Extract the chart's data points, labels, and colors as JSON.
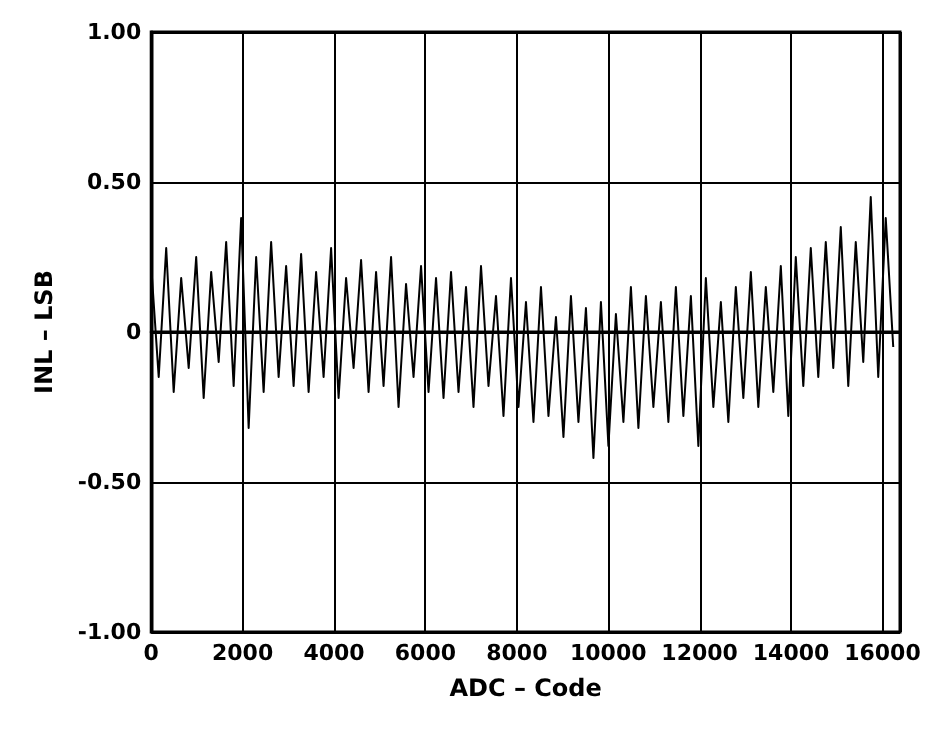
{
  "chart_data": {
    "type": "line",
    "xlabel": "ADC – Code",
    "ylabel": "INL – LSB",
    "x": [
      0,
      164,
      328,
      492,
      656,
      820,
      984,
      1148,
      1312,
      1476,
      1640,
      1804,
      1968,
      2132,
      2296,
      2460,
      2624,
      2788,
      2952,
      3116,
      3280,
      3444,
      3608,
      3772,
      3936,
      4100,
      4264,
      4428,
      4592,
      4756,
      4920,
      5084,
      5248,
      5412,
      5576,
      5740,
      5904,
      6068,
      6232,
      6396,
      6560,
      6724,
      6888,
      7052,
      7216,
      7380,
      7544,
      7708,
      7872,
      8036,
      8200,
      8364,
      8528,
      8692,
      8856,
      9020,
      9184,
      9348,
      9512,
      9676,
      9840,
      10004,
      10168,
      10332,
      10496,
      10660,
      10824,
      10988,
      11152,
      11316,
      11480,
      11644,
      11808,
      11972,
      12136,
      12300,
      12464,
      12628,
      12792,
      12956,
      13120,
      13284,
      13448,
      13612,
      13776,
      13940,
      14104,
      14268,
      14432,
      14596,
      14760,
      14924,
      15088,
      15252,
      15416,
      15580,
      15744,
      15908,
      16072,
      16236
    ],
    "series": [
      {
        "color": "#000000",
        "values": [
          0.22,
          -0.15,
          0.28,
          -0.2,
          0.18,
          -0.12,
          0.25,
          -0.22,
          0.2,
          -0.1,
          0.3,
          -0.18,
          0.38,
          -0.32,
          0.25,
          -0.2,
          0.3,
          -0.15,
          0.22,
          -0.18,
          0.26,
          -0.2,
          0.2,
          -0.15,
          0.28,
          -0.22,
          0.18,
          -0.12,
          0.24,
          -0.2,
          0.2,
          -0.18,
          0.25,
          -0.25,
          0.16,
          -0.15,
          0.22,
          -0.2,
          0.18,
          -0.22,
          0.2,
          -0.2,
          0.15,
          -0.25,
          0.22,
          -0.18,
          0.12,
          -0.28,
          0.18,
          -0.25,
          0.1,
          -0.3,
          0.15,
          -0.28,
          0.05,
          -0.35,
          0.12,
          -0.3,
          0.08,
          -0.42,
          0.1,
          -0.38,
          0.06,
          -0.3,
          0.15,
          -0.32,
          0.12,
          -0.25,
          0.1,
          -0.3,
          0.15,
          -0.28,
          0.12,
          -0.38,
          0.18,
          -0.25,
          0.1,
          -0.3,
          0.15,
          -0.22,
          0.2,
          -0.25,
          0.15,
          -0.2,
          0.22,
          -0.28,
          0.25,
          -0.18,
          0.28,
          -0.15,
          0.3,
          -0.12,
          0.35,
          -0.18,
          0.3,
          -0.1,
          0.45,
          -0.15,
          0.38,
          -0.05
        ]
      }
    ],
    "xlim": [
      0,
      16384
    ],
    "xticks": [
      0,
      2000,
      4000,
      6000,
      8000,
      10000,
      12000,
      14000,
      16000
    ],
    "ylim": [
      -1,
      1
    ],
    "yticks": [
      {
        "value": -1,
        "label": "-1.00"
      },
      {
        "value": -0.5,
        "label": "-0.50"
      },
      0,
      {
        "value": 0.5,
        "label": "0.50"
      },
      {
        "value": 1,
        "label": "1.00"
      }
    ],
    "grid": true,
    "marker": "none",
    "line_style": "solid"
  }
}
